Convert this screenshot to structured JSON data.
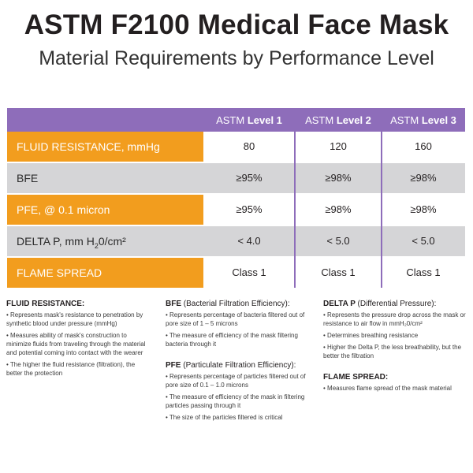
{
  "title": "ASTM F2100 Medical Face Mask",
  "subtitle": "Material Requirements by Performance Level",
  "table": {
    "headers": [
      {
        "prefix": "ASTM",
        "level": "Level 1"
      },
      {
        "prefix": "ASTM",
        "level": "Level 2"
      },
      {
        "prefix": "ASTM",
        "level": "Level 3"
      }
    ],
    "rows": [
      {
        "label": "FLUID RESISTANCE, mmHg",
        "values": [
          "80",
          "120",
          "160"
        ]
      },
      {
        "label": "BFE",
        "values": [
          "≥95%",
          "≥98%",
          "≥98%"
        ]
      },
      {
        "label": "PFE, @ 0.1 micron",
        "values": [
          "≥95%",
          "≥98%",
          "≥98%"
        ]
      },
      {
        "label_main": "DELTA P, mm H",
        "label_sub": "2",
        "label_tail": "0/cm²",
        "values": [
          "< 4.0",
          "< 5.0",
          "< 5.0"
        ]
      },
      {
        "label": "FLAME SPREAD",
        "values": [
          "Class 1",
          "Class 1",
          "Class 1"
        ]
      }
    ]
  },
  "notes": {
    "fluid": {
      "head": "FLUID RESISTANCE:",
      "bullets": [
        "• Represents mask's resistance to penetration by synthetic blood under pressure (mmHg)",
        "• Measures ability of mask's construction to minimize fluids from traveling through the material and potential coming into contact with the wearer",
        "• The higher the fluid resistance (filtration), the better the protection"
      ]
    },
    "bfe": {
      "head": "BFE",
      "head_sub": "(Bacterial Filtration Efficiency):",
      "bullets": [
        "• Represents percentage of bacteria filtered out of pore size of 1 – 5 microns",
        "• The measure of efficiency of the mask filtering bacteria through it"
      ]
    },
    "pfe": {
      "head": "PFE",
      "head_sub": "(Particulate Filtration Efficiency):",
      "bullets": [
        "• Represents percentage of particles filtered out of pore size of 0.1 – 1.0 microns",
        "• The measure of efficiency of the mask in filtering particles passing through it",
        "• The size of the particles filtered is critical"
      ]
    },
    "delta": {
      "head": "DELTA P",
      "head_sub": "(Differential Pressure):",
      "bullets": [
        "• Represents the pressure drop across the mask or resistance to air flow in mmH₂0/cm²",
        "• Determines breathing resistance",
        "• Higher the Delta P, the less breathability, but the better the filtration"
      ]
    },
    "flame": {
      "head": "FLAME SPREAD:",
      "bullets": [
        "• Measures flame spread of the mask material"
      ]
    }
  },
  "colors": {
    "purple": "#8e6dba",
    "orange": "#f29d1e",
    "gray": "#d5d5d7"
  }
}
